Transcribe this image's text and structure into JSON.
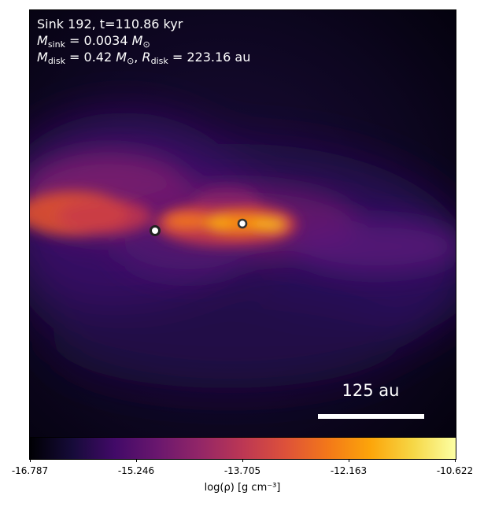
{
  "info": {
    "line1": "Sink 192, t=110.86 kyr",
    "m_sink_symbol": "M",
    "m_sink_sub": "sink",
    "m_sink_value": "= 0.0034",
    "m_sink_unit": "M",
    "m_sink_unit_sub": "⊙",
    "m_disk_symbol": "M",
    "m_disk_sub": "disk",
    "m_disk_value": "= 0.42",
    "m_disk_unit": "M",
    "m_disk_unit_sub": "⊙",
    "separator": ",",
    "r_disk_symbol": "R",
    "r_disk_sub": "disk",
    "r_disk_value": "= 223.16 au"
  },
  "scalebar": {
    "label": "125 au"
  },
  "colorbar": {
    "tick_labels": [
      "-16.787",
      "-15.246",
      "-13.705",
      "-12.163",
      "-10.622"
    ],
    "axis_label": "log(ρ) [g cm⁻³]",
    "colormap": "inferno",
    "min": -16.787,
    "max": -10.622
  },
  "sinks": [
    {
      "name": "sink-left"
    },
    {
      "name": "sink-right"
    }
  ],
  "colors": {
    "sink_ring": "#222222",
    "sink_fill": "#ffffff",
    "text": "#ffffff"
  }
}
